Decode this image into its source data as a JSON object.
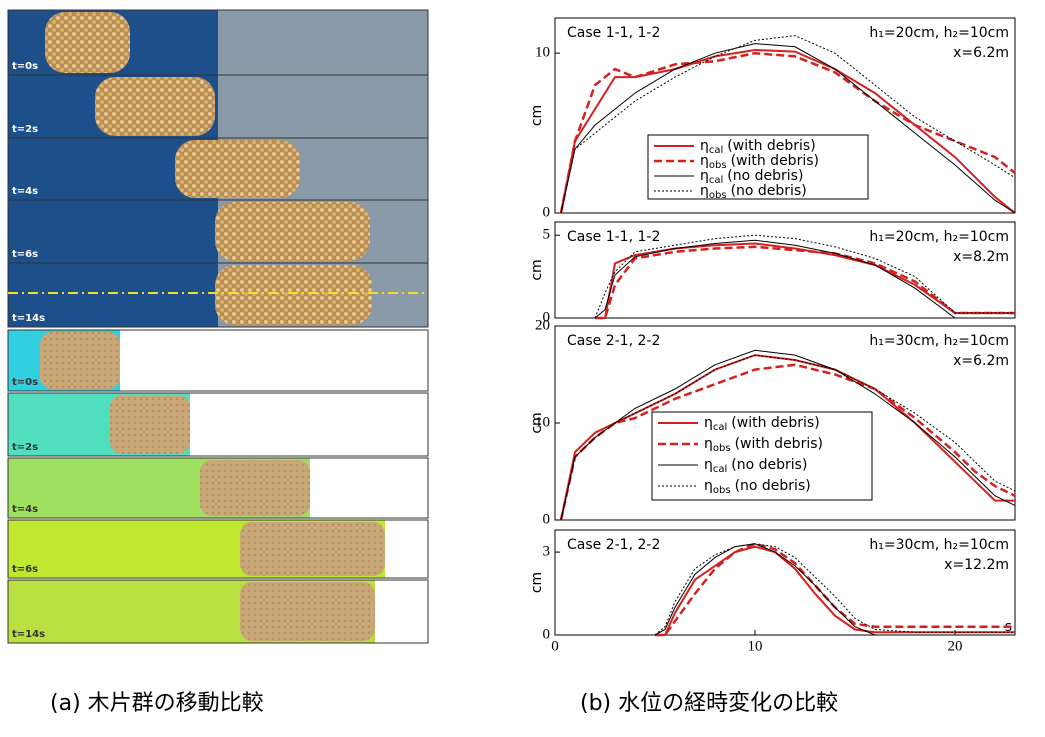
{
  "panel_a": {
    "photo_labels": [
      "t=0s",
      "t=2s",
      "t=4s",
      "t=6s",
      "t=14s"
    ],
    "simulation_labels": [
      "t=0s",
      "t=2s",
      "t=4s",
      "t=6s",
      "t=14s"
    ]
  },
  "captions": [
    "(a) 木片群の移動比較",
    "(b) 水位の経時変化の比較"
  ],
  "chart_data": [
    {
      "type": "line",
      "y_label": "cm",
      "case": "Case 1-1, 1-2",
      "condition": "h₁=20cm, h₂=10cm",
      "position": "x=6.2m",
      "legend": true,
      "xlim": [
        0,
        23
      ],
      "ylim": [
        0,
        12.2
      ],
      "yticks": [
        0,
        10
      ],
      "x": [
        0.3,
        1,
        2,
        3,
        4,
        6,
        8,
        10,
        12,
        14,
        16,
        18,
        20,
        22,
        23
      ],
      "series": [
        {
          "symbol": "η",
          "subscript": "cal",
          "name": "(with debris)",
          "color": "#d62020",
          "style": "solid",
          "width": 2,
          "values": [
            0,
            4.5,
            6.5,
            8.5,
            8.5,
            9,
            9.8,
            10.2,
            10.1,
            9,
            7.5,
            5.5,
            3.5,
            1,
            0
          ]
        },
        {
          "symbol": "η",
          "subscript": "obs",
          "name": "(with debris)",
          "color": "#d62020",
          "style": "dashed",
          "width": 2.5,
          "values": [
            0,
            4.5,
            8,
            9,
            8.5,
            9.3,
            9.5,
            10,
            9.8,
            8.8,
            7,
            5.5,
            4.5,
            3.5,
            2.5
          ]
        },
        {
          "symbol": "η",
          "subscript": "cal",
          "name": "(no debris)",
          "color": "#000000",
          "style": "solid",
          "width": 1,
          "values": [
            0,
            4,
            5.5,
            6.5,
            7.5,
            9,
            10,
            10.6,
            10.4,
            9,
            7,
            5,
            3,
            0.8,
            0
          ]
        },
        {
          "symbol": "η",
          "subscript": "obs",
          "name": "(no debris)",
          "color": "#000000",
          "style": "dotted",
          "width": 1,
          "values": [
            0,
            4,
            5,
            6,
            7,
            8.5,
            9.8,
            10.8,
            11.1,
            10,
            8,
            6,
            4.5,
            3,
            2.2
          ]
        }
      ]
    },
    {
      "type": "line",
      "y_label": "cm",
      "case": "Case 1-1, 1-2",
      "condition": "h₁=20cm, h₂=10cm",
      "position": "x=8.2m",
      "legend": false,
      "xlim": [
        0,
        23
      ],
      "ylim": [
        0,
        5.8
      ],
      "yticks": [
        0,
        5
      ],
      "x": [
        2,
        2.5,
        3,
        4,
        6,
        8,
        10,
        12,
        14,
        16,
        18,
        20,
        22,
        23
      ],
      "series": [
        {
          "color": "#d62020",
          "style": "solid",
          "width": 2,
          "values": [
            0,
            0,
            3.3,
            3.8,
            4.2,
            4.4,
            4.5,
            4.2,
            3.8,
            3.2,
            2,
            0.3,
            0.3,
            0.3
          ]
        },
        {
          "color": "#d62020",
          "style": "dashed",
          "width": 2.5,
          "values": [
            0,
            0,
            2,
            3.6,
            4,
            4.2,
            4.3,
            4.1,
            3.9,
            3.3,
            2.2,
            0.3,
            0.3,
            0.3
          ]
        },
        {
          "color": "#000000",
          "style": "solid",
          "width": 1,
          "values": [
            0,
            0.5,
            2.6,
            3.7,
            4.2,
            4.5,
            4.7,
            4.4,
            3.9,
            3.2,
            1.8,
            0,
            0,
            0
          ]
        },
        {
          "color": "#000000",
          "style": "dotted",
          "width": 1,
          "values": [
            0,
            1.5,
            2.8,
            4,
            4.4,
            4.8,
            5,
            4.8,
            4.3,
            3.6,
            2.5,
            0.3,
            0.3,
            0.3
          ]
        }
      ]
    },
    {
      "type": "line",
      "y_label": "cm",
      "case": "Case 2-1, 2-2",
      "condition": "h₁=30cm, h₂=10cm",
      "position": "x=6.2m",
      "legend": true,
      "xlim": [
        0,
        23
      ],
      "ylim": [
        0,
        20
      ],
      "yticks": [
        0,
        10,
        20
      ],
      "x": [
        0.3,
        1,
        2,
        3,
        4,
        6,
        8,
        10,
        12,
        14,
        16,
        18,
        20,
        21,
        22,
        23
      ],
      "series": [
        {
          "symbol": "η",
          "subscript": "cal",
          "name": "(with debris)",
          "color": "#d62020",
          "style": "solid",
          "width": 2,
          "values": [
            0,
            7,
            9,
            10,
            11,
            13,
            15.5,
            17,
            16.5,
            15.5,
            13.5,
            10,
            6,
            4,
            2,
            2
          ]
        },
        {
          "symbol": "η",
          "subscript": "obs",
          "name": "(with debris)",
          "color": "#d62020",
          "style": "dashed",
          "width": 2.5,
          "values": [
            0,
            6.5,
            8.5,
            10,
            10.5,
            12.5,
            14,
            15.5,
            16,
            15,
            13.5,
            10.5,
            7,
            5,
            3.5,
            2.5
          ]
        },
        {
          "symbol": "η",
          "subscript": "cal",
          "name": "(no debris)",
          "color": "#000000",
          "style": "solid",
          "width": 1,
          "values": [
            0,
            6.5,
            8.5,
            10,
            11.5,
            13.5,
            16,
            17.5,
            17,
            15.5,
            13,
            10,
            6.5,
            4.5,
            2.5,
            1.5
          ]
        },
        {
          "symbol": "η",
          "subscript": "obs",
          "name": "(no debris)",
          "color": "#000000",
          "style": "dotted",
          "width": 1,
          "values": [
            0,
            6.5,
            8.5,
            10,
            11,
            13,
            15.5,
            17,
            16.5,
            15.5,
            13.5,
            11,
            8,
            6,
            4,
            3
          ]
        }
      ]
    },
    {
      "type": "line",
      "y_label": "cm",
      "x_label": "s",
      "case": "Case 2-1, 2-2",
      "condition": "h₁=30cm, h₂=10cm",
      "position": "x=12.2m",
      "legend": false,
      "xlim": [
        0,
        23
      ],
      "ylim": [
        0,
        3.8
      ],
      "yticks": [
        0,
        3
      ],
      "xticks": [
        0,
        10,
        20
      ],
      "x": [
        5,
        5.5,
        6,
        7,
        8,
        9,
        10,
        11,
        12,
        13,
        14,
        15,
        16,
        18,
        20,
        23
      ],
      "series": [
        {
          "color": "#d62020",
          "style": "solid",
          "width": 2,
          "values": [
            0,
            0,
            0.8,
            2,
            2.5,
            3,
            3.2,
            3,
            2.4,
            1.5,
            0.7,
            0.2,
            0.1,
            0.1,
            0.1,
            0.1
          ]
        },
        {
          "color": "#d62020",
          "style": "dashed",
          "width": 2.5,
          "values": [
            0,
            0,
            0.5,
            1.5,
            2.4,
            3,
            3.3,
            3.1,
            2.6,
            1.8,
            1,
            0.4,
            0.3,
            0.3,
            0.3,
            0.3
          ]
        },
        {
          "color": "#000000",
          "style": "solid",
          "width": 1,
          "values": [
            0,
            0.2,
            1,
            2.2,
            2.8,
            3.2,
            3.3,
            3,
            2.5,
            1.8,
            1,
            0.3,
            0,
            0,
            0,
            0
          ]
        },
        {
          "color": "#000000",
          "style": "dotted",
          "width": 1,
          "values": [
            0,
            0.3,
            1.2,
            2.4,
            2.9,
            3.2,
            3.3,
            3.2,
            2.8,
            2.1,
            1.4,
            0.6,
            0.2,
            0.1,
            0.1,
            0.1
          ]
        }
      ]
    }
  ]
}
